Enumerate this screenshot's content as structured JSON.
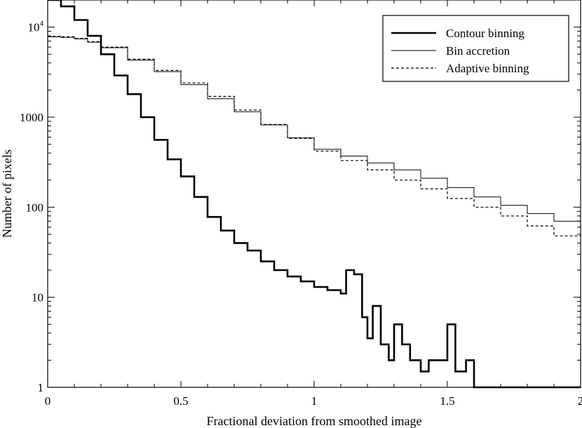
{
  "chart_data": {
    "type": "line",
    "title": "",
    "xlabel": "Fractional deviation from smoothed image",
    "ylabel": "Number of pixels",
    "xlim": [
      0,
      2
    ],
    "ylim": [
      1,
      20000
    ],
    "yscale": "log",
    "grid": false,
    "legend_position": "top-right",
    "x_ticks": [
      {
        "value": 0,
        "label": "0"
      },
      {
        "value": 0.5,
        "label": "0.5"
      },
      {
        "value": 1,
        "label": "1"
      },
      {
        "value": 1.5,
        "label": "1.5"
      },
      {
        "value": 2,
        "label": "2"
      }
    ],
    "y_ticks": [
      {
        "value": 1,
        "label": "1"
      },
      {
        "value": 10,
        "label": "10"
      },
      {
        "value": 100,
        "label": "100"
      },
      {
        "value": 1000,
        "label": "1000"
      },
      {
        "value": 10000,
        "label": "10",
        "sup": "4"
      }
    ],
    "series": [
      {
        "name": "Contour binning",
        "style": "thick-solid",
        "color": "#000000",
        "x": [
          0,
          0.05,
          0.1,
          0.15,
          0.2,
          0.25,
          0.3,
          0.35,
          0.4,
          0.45,
          0.5,
          0.55,
          0.6,
          0.65,
          0.7,
          0.75,
          0.8,
          0.85,
          0.9,
          0.95,
          1.0,
          1.05,
          1.1,
          1.12,
          1.15,
          1.18,
          1.2,
          1.22,
          1.25,
          1.28,
          1.3,
          1.33,
          1.36,
          1.4,
          1.43,
          1.47,
          1.5,
          1.53,
          1.57,
          1.6
        ],
        "values": [
          20000,
          17000,
          12000,
          8000,
          5000,
          2900,
          1800,
          1000,
          560,
          340,
          220,
          130,
          78,
          55,
          40,
          33,
          25,
          20,
          17,
          15,
          13,
          12,
          11,
          20,
          18,
          6,
          3.5,
          8,
          3,
          2,
          5,
          3,
          2,
          1.5,
          2,
          2,
          5,
          1.5,
          2,
          1
        ]
      },
      {
        "name": "Bin accretion",
        "style": "thin-solid",
        "color": "#000000",
        "x": [
          0,
          0.05,
          0.1,
          0.15,
          0.2,
          0.3,
          0.4,
          0.5,
          0.6,
          0.7,
          0.8,
          0.9,
          1.0,
          1.1,
          1.2,
          1.3,
          1.4,
          1.5,
          1.6,
          1.7,
          1.8,
          1.9,
          2.0
        ],
        "values": [
          7800,
          7700,
          7400,
          6800,
          5900,
          4300,
          3200,
          2300,
          1600,
          1150,
          820,
          590,
          440,
          370,
          310,
          260,
          210,
          165,
          130,
          105,
          85,
          70,
          60
        ]
      },
      {
        "name": "Adaptive binning",
        "style": "dashed",
        "color": "#000000",
        "x": [
          0,
          0.05,
          0.1,
          0.15,
          0.2,
          0.3,
          0.4,
          0.5,
          0.6,
          0.7,
          0.8,
          0.9,
          1.0,
          1.1,
          1.2,
          1.3,
          1.4,
          1.5,
          1.6,
          1.7,
          1.8,
          1.9,
          2.0
        ],
        "values": [
          7900,
          7800,
          7500,
          6900,
          6000,
          4400,
          3300,
          2400,
          1700,
          1200,
          830,
          580,
          420,
          330,
          260,
          200,
          160,
          125,
          100,
          80,
          62,
          48,
          50
        ]
      }
    ]
  }
}
